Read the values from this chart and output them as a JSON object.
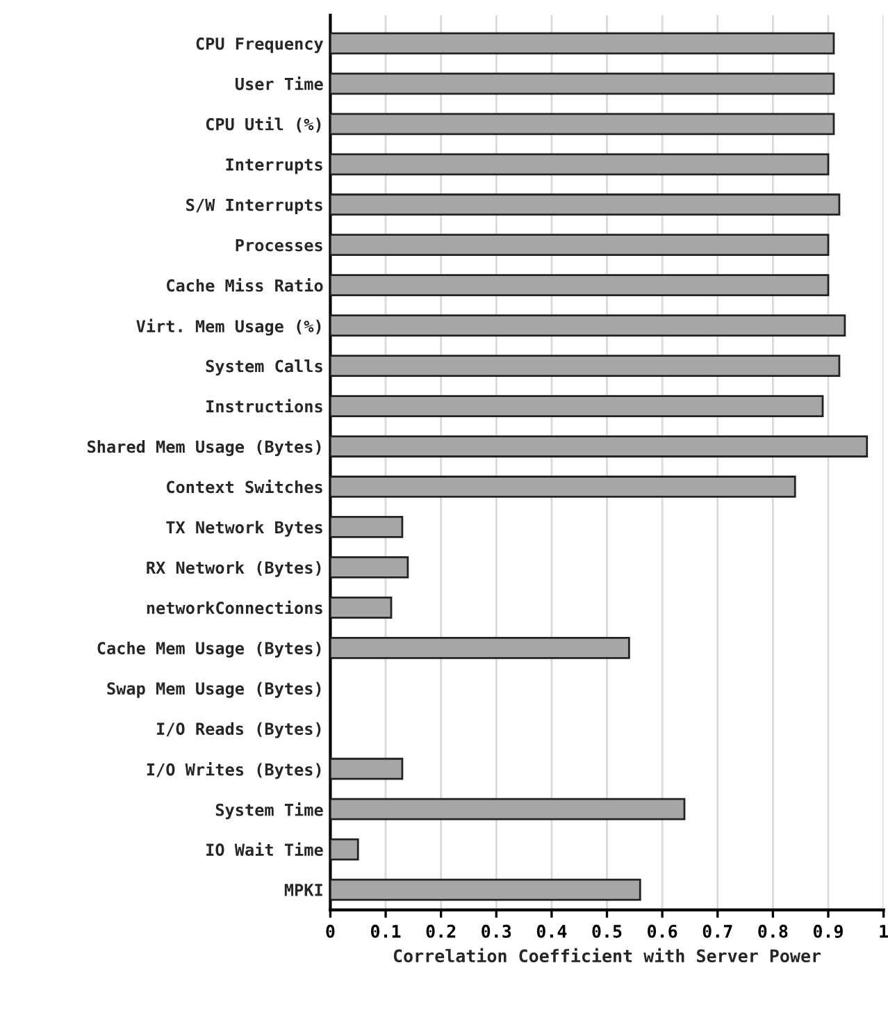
{
  "chart_data": {
    "type": "bar",
    "orientation": "horizontal",
    "xlabel": "Correlation Coefficient with Server Power",
    "categories": [
      "CPU Frequency",
      "User Time",
      "CPU Util (%)",
      "Interrupts",
      "S/W Interrupts",
      "Processes",
      "Cache Miss Ratio",
      "Virt. Mem Usage (%)",
      "System Calls",
      "Instructions",
      "Shared Mem Usage (Bytes)",
      "Context Switches",
      "TX Network Bytes",
      "RX Network (Bytes)",
      "networkConnections",
      "Cache Mem Usage (Bytes)",
      "Swap Mem Usage (Bytes)",
      "I/O Reads (Bytes)",
      "I/O Writes (Bytes)",
      "System Time",
      "IO Wait Time",
      "MPKI"
    ],
    "values": [
      0.91,
      0.91,
      0.91,
      0.9,
      0.92,
      0.9,
      0.9,
      0.93,
      0.92,
      0.89,
      0.97,
      0.84,
      0.13,
      0.14,
      0.11,
      0.54,
      null,
      null,
      0.13,
      0.64,
      0.05,
      0.56
    ],
    "color": "#a6a6a6",
    "xlim": [
      0,
      1
    ],
    "xticks": [
      0,
      0.1,
      0.2,
      0.3,
      0.4,
      0.5,
      0.6,
      0.7,
      0.8,
      0.9,
      1
    ],
    "grid": "x"
  }
}
